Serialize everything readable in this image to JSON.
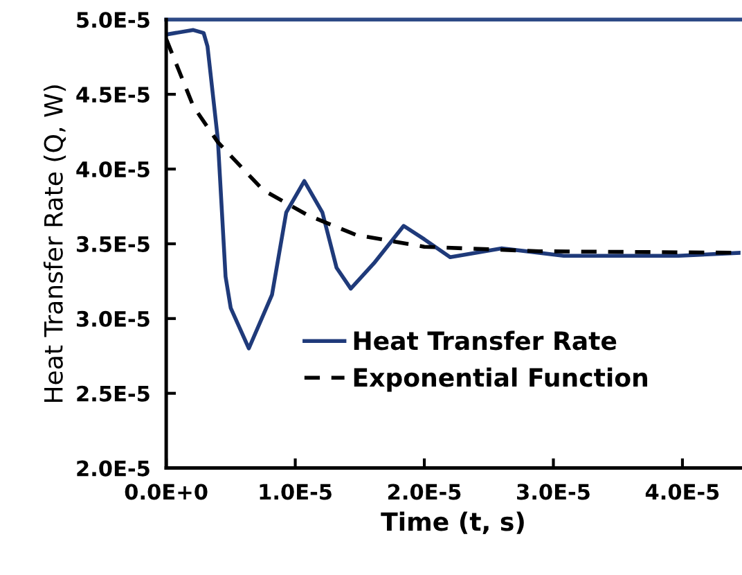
{
  "chart_data": {
    "type": "line",
    "xlabel": "Time (t, s)",
    "ylabel": "Heat Transfer Rate (Q, W)",
    "xlim": [
      0,
      4.45e-05
    ],
    "ylim": [
      2e-05,
      5e-05
    ],
    "xticks": [
      {
        "value": 0,
        "label": "0.0E+0"
      },
      {
        "value": 1e-05,
        "label": "1.0E-5"
      },
      {
        "value": 2e-05,
        "label": "2.0E-5"
      },
      {
        "value": 3e-05,
        "label": "3.0E-5"
      },
      {
        "value": 4e-05,
        "label": "4.0E-5"
      }
    ],
    "yticks": [
      {
        "value": 2e-05,
        "label": "2.0E-5"
      },
      {
        "value": 2.5e-05,
        "label": "2.5E-5"
      },
      {
        "value": 3e-05,
        "label": "3.0E-5"
      },
      {
        "value": 3.5e-05,
        "label": "3.5E-5"
      },
      {
        "value": 4e-05,
        "label": "4.0E-5"
      },
      {
        "value": 4.5e-05,
        "label": "4.5E-5"
      },
      {
        "value": 5e-05,
        "label": "5.0E-5"
      }
    ],
    "grid": false,
    "legend": "bottom right",
    "ref_lines": [
      {
        "axis": "y",
        "value": 5e-05,
        "color": "#2e4a86",
        "line_style": "solid"
      }
    ],
    "series": [
      {
        "name": "Heat Transfer Rate",
        "color": "#1f3a7a",
        "line_style": "solid",
        "x": [
          0,
          2.1e-06,
          2.9e-06,
          3.2e-06,
          4e-06,
          4.6e-06,
          5e-06,
          6.4e-06,
          8.2e-06,
          9.3e-06,
          1.07e-05,
          1.21e-05,
          1.32e-05,
          1.43e-05,
          1.61e-05,
          1.84e-05,
          2e-05,
          2.2e-05,
          2.6e-05,
          3.08e-05,
          3.97e-05,
          4.45e-05
        ],
        "values": [
          4.9e-05,
          4.93e-05,
          4.91e-05,
          4.82e-05,
          4.2e-05,
          3.28e-05,
          3.07e-05,
          2.8e-05,
          3.16e-05,
          3.71e-05,
          3.92e-05,
          3.71e-05,
          3.34e-05,
          3.2e-05,
          3.37e-05,
          3.62e-05,
          3.53e-05,
          3.41e-05,
          3.47e-05,
          3.42e-05,
          3.42e-05,
          3.44e-05
        ]
      },
      {
        "name": "Exponential Function",
        "color": "#000000",
        "line_style": "dashed",
        "x": [
          0,
          2.1e-06,
          4e-06,
          7.5e-06,
          1.1e-05,
          1.47e-05,
          2e-05,
          2.89e-05,
          4.45e-05
        ],
        "values": [
          4.87e-05,
          4.42e-05,
          4.18e-05,
          3.86e-05,
          3.69e-05,
          3.56e-05,
          3.48e-05,
          3.45e-05,
          3.44e-05
        ]
      }
    ]
  }
}
